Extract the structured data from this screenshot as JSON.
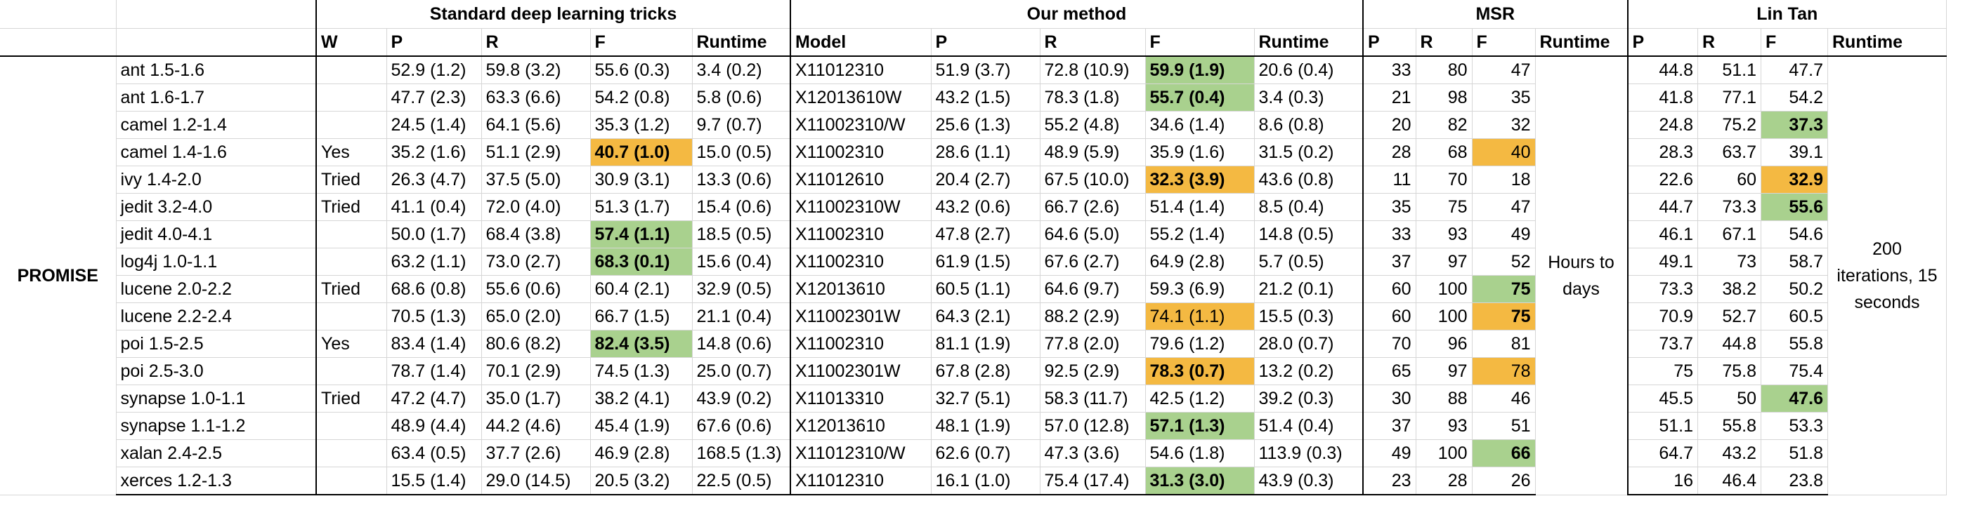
{
  "groups": {
    "standard": "Standard deep learning tricks",
    "ours": "Our method",
    "msr": "MSR",
    "lintan": "Lin Tan"
  },
  "subheaders": {
    "std": [
      "W",
      "P",
      "R",
      "F",
      "Runtime"
    ],
    "ours": [
      "Model",
      "P",
      "R",
      "F",
      "Runtime"
    ],
    "msr": [
      "P",
      "R",
      "F",
      "Runtime"
    ],
    "lintan": [
      "P",
      "R",
      "F",
      "Runtime"
    ]
  },
  "dataset_label": "PROMISE",
  "msr_runtime": "Hours to days",
  "lintan_runtime": "200 iterations, 15 seconds",
  "highlight_colors": {
    "good": "#a9d18e",
    "bad": "#f4b942"
  },
  "rows": [
    {
      "name": "ant 1.5-1.6",
      "w": "",
      "sp": "52.9 (1.2)",
      "sr": "59.8 (3.2)",
      "sf": "55.6 (0.3)",
      "srt": "3.4 (0.2)",
      "model": "X11012310",
      "op": "51.9 (3.7)",
      "or": "72.8 (10.9)",
      "of": "59.9 (1.9)",
      "ort": "20.6 (0.4)",
      "mp": "33",
      "mr": "80",
      "mf": "47",
      "lp": "44.8",
      "lr": "51.1",
      "lf": "47.7"
    },
    {
      "name": "ant 1.6-1.7",
      "w": "",
      "sp": "47.7 (2.3)",
      "sr": "63.3 (6.6)",
      "sf": "54.2 (0.8)",
      "srt": "5.8 (0.6)",
      "model": "X12013610W",
      "op": "43.2 (1.5)",
      "or": "78.3 (1.8)",
      "of": "55.7 (0.4)",
      "ort": "3.4 (0.3)",
      "mp": "21",
      "mr": "98",
      "mf": "35",
      "lp": "41.8",
      "lr": "77.1",
      "lf": "54.2"
    },
    {
      "name": "camel 1.2-1.4",
      "w": "",
      "sp": "24.5 (1.4)",
      "sr": "64.1 (5.6)",
      "sf": "35.3 (1.2)",
      "srt": "9.7 (0.7)",
      "model": "X11002310/W",
      "op": "25.6 (1.3)",
      "or": "55.2 (4.8)",
      "of": "34.6 (1.4)",
      "ort": "8.6 (0.8)",
      "mp": "20",
      "mr": "82",
      "mf": "32",
      "lp": "24.8",
      "lr": "75.2",
      "lf": "37.3"
    },
    {
      "name": "camel 1.4-1.6",
      "w": "Yes",
      "sp": "35.2 (1.6)",
      "sr": "51.1 (2.9)",
      "sf": "40.7 (1.0)",
      "srt": "15.0 (0.5)",
      "model": "X11002310",
      "op": "28.6 (1.1)",
      "or": "48.9 (5.9)",
      "of": "35.9 (1.6)",
      "ort": "31.5 (0.2)",
      "mp": "28",
      "mr": "68",
      "mf": "40",
      "lp": "28.3",
      "lr": "63.7",
      "lf": "39.1"
    },
    {
      "name": "ivy 1.4-2.0",
      "w": "Tried",
      "sp": "26.3 (4.7)",
      "sr": "37.5 (5.0)",
      "sf": "30.9 (3.1)",
      "srt": "13.3 (0.6)",
      "model": "X11012610",
      "op": "20.4 (2.7)",
      "or": "67.5 (10.0)",
      "of": "32.3 (3.9)",
      "ort": "43.6 (0.8)",
      "mp": "11",
      "mr": "70",
      "mf": "18",
      "lp": "22.6",
      "lr": "60",
      "lf": "32.9"
    },
    {
      "name": "jedit 3.2-4.0",
      "w": "Tried",
      "sp": "41.1 (0.4)",
      "sr": "72.0 (4.0)",
      "sf": "51.3 (1.7)",
      "srt": "15.4 (0.6)",
      "model": "X11002310W",
      "op": "43.2 (0.6)",
      "or": "66.7 (2.6)",
      "of": "51.4 (1.4)",
      "ort": "8.5 (0.4)",
      "mp": "35",
      "mr": "75",
      "mf": "47",
      "lp": "44.7",
      "lr": "73.3",
      "lf": "55.6"
    },
    {
      "name": "jedit 4.0-4.1",
      "w": "",
      "sp": "50.0 (1.7)",
      "sr": "68.4 (3.8)",
      "sf": "57.4 (1.1)",
      "srt": "18.5 (0.5)",
      "model": "X11002310",
      "op": "47.8 (2.7)",
      "or": "64.6 (5.0)",
      "of": "55.2 (1.4)",
      "ort": "14.8 (0.5)",
      "mp": "33",
      "mr": "93",
      "mf": "49",
      "lp": "46.1",
      "lr": "67.1",
      "lf": "54.6"
    },
    {
      "name": "log4j 1.0-1.1",
      "w": "",
      "sp": "63.2 (1.1)",
      "sr": "73.0 (2.7)",
      "sf": "68.3 (0.1)",
      "srt": "15.6 (0.4)",
      "model": "X11002310",
      "op": "61.9 (1.5)",
      "or": "67.6 (2.7)",
      "of": "64.9 (2.8)",
      "ort": "5.7 (0.5)",
      "mp": "37",
      "mr": "97",
      "mf": "52",
      "lp": "49.1",
      "lr": "73",
      "lf": "58.7"
    },
    {
      "name": "lucene 2.0-2.2",
      "w": "Tried",
      "sp": "68.6 (0.8)",
      "sr": "55.6 (0.6)",
      "sf": "60.4 (2.1)",
      "srt": "32.9 (0.5)",
      "model": "X12013610",
      "op": "60.5 (1.1)",
      "or": "64.6 (9.7)",
      "of": "59.3 (6.9)",
      "ort": "21.2 (0.1)",
      "mp": "60",
      "mr": "100",
      "mf": "75",
      "lp": "73.3",
      "lr": "38.2",
      "lf": "50.2"
    },
    {
      "name": "lucene 2.2-2.4",
      "w": "",
      "sp": "70.5 (1.3)",
      "sr": "65.0 (2.0)",
      "sf": "66.7 (1.5)",
      "srt": "21.1 (0.4)",
      "model": "X11002301W",
      "op": "64.3 (2.1)",
      "or": "88.2 (2.9)",
      "of": "74.1 (1.1)",
      "ort": "15.5 (0.3)",
      "mp": "60",
      "mr": "100",
      "mf": "75",
      "lp": "70.9",
      "lr": "52.7",
      "lf": "60.5"
    },
    {
      "name": "poi 1.5-2.5",
      "w": "Yes",
      "sp": "83.4 (1.4)",
      "sr": "80.6 (8.2)",
      "sf": "82.4 (3.5)",
      "srt": "14.8 (0.6)",
      "model": "X11002310",
      "op": "81.1 (1.9)",
      "or": "77.8 (2.0)",
      "of": "79.6 (1.2)",
      "ort": "28.0 (0.7)",
      "mp": "70",
      "mr": "96",
      "mf": "81",
      "lp": "73.7",
      "lr": "44.8",
      "lf": "55.8"
    },
    {
      "name": "poi 2.5-3.0",
      "w": "",
      "sp": "78.7 (1.4)",
      "sr": "70.1 (2.9)",
      "sf": "74.5 (1.3)",
      "srt": "25.0 (0.7)",
      "model": "X11002301W",
      "op": "67.8 (2.8)",
      "or": "92.5 (2.9)",
      "of": "78.3 (0.7)",
      "ort": "13.2 (0.2)",
      "mp": "65",
      "mr": "97",
      "mf": "78",
      "lp": "75",
      "lr": "75.8",
      "lf": "75.4"
    },
    {
      "name": "synapse 1.0-1.1",
      "w": "Tried",
      "sp": "47.2 (4.7)",
      "sr": "35.0 (1.7)",
      "sf": "38.2 (4.1)",
      "srt": "43.9 (0.2)",
      "model": "X11013310",
      "op": "32.7 (5.1)",
      "or": "58.3 (11.7)",
      "of": "42.5 (1.2)",
      "ort": "39.2 (0.3)",
      "mp": "30",
      "mr": "88",
      "mf": "46",
      "lp": "45.5",
      "lr": "50",
      "lf": "47.6"
    },
    {
      "name": "synapse 1.1-1.2",
      "w": "",
      "sp": "48.9 (4.4)",
      "sr": "44.2 (4.6)",
      "sf": "45.4 (1.9)",
      "srt": "67.6 (0.6)",
      "model": "X12013610",
      "op": "48.1 (1.9)",
      "or": "57.0 (12.8)",
      "of": "57.1 (1.3)",
      "ort": "51.4 (0.4)",
      "mp": "37",
      "mr": "93",
      "mf": "51",
      "lp": "51.1",
      "lr": "55.8",
      "lf": "53.3"
    },
    {
      "name": "xalan 2.4-2.5",
      "w": "",
      "sp": "63.4 (0.5)",
      "sr": "37.7 (2.6)",
      "sf": "46.9 (2.8)",
      "srt": "168.5 (1.3)",
      "model": "X11012310/W",
      "op": "62.6 (0.7)",
      "or": "47.3 (3.6)",
      "of": "54.6 (1.8)",
      "ort": "113.9 (0.3)",
      "mp": "49",
      "mr": "100",
      "mf": "66",
      "lp": "64.7",
      "lr": "43.2",
      "lf": "51.8"
    },
    {
      "name": "xerces 1.2-1.3",
      "w": "",
      "sp": "15.5 (1.4)",
      "sr": "29.0 (14.5)",
      "sf": "20.5 (3.2)",
      "srt": "22.5 (0.5)",
      "model": "X11012310",
      "op": "16.1 (1.0)",
      "or": "75.4 (17.4)",
      "of": "31.3 (3.0)",
      "ort": "43.9 (0.3)",
      "mp": "23",
      "mr": "28",
      "mf": "26",
      "lp": "16",
      "lr": "46.4",
      "lf": "23.8"
    }
  ]
}
